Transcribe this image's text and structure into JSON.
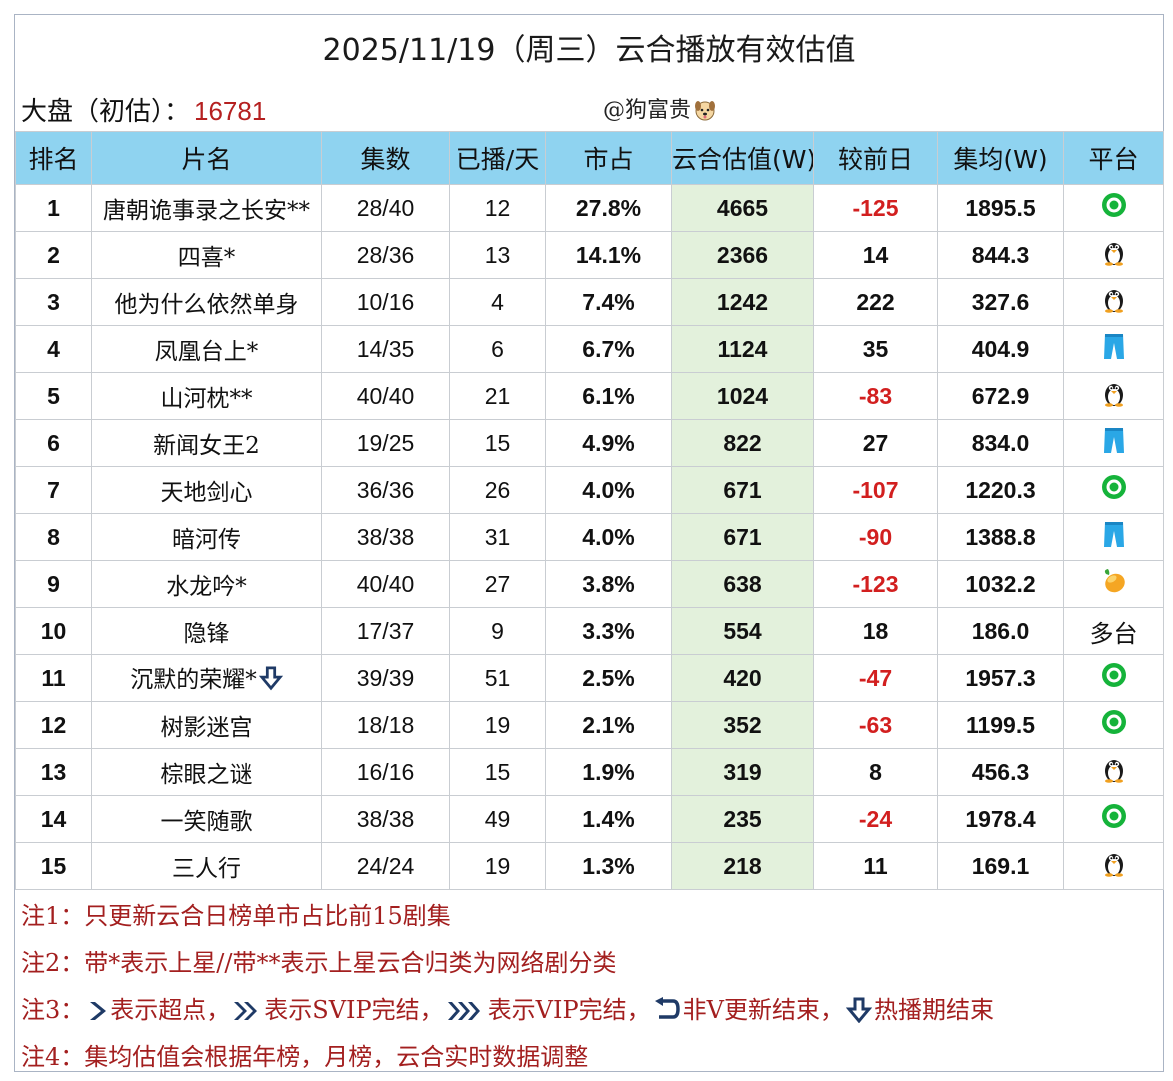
{
  "title": "2025/11/19（周三）云合播放有效估值",
  "dapan": {
    "label": "大盘（初估）：",
    "value": "16781"
  },
  "author": "@狗富贵",
  "headers": [
    "排名",
    "片名",
    "集数",
    "已播/天",
    "市占",
    "云合估值(W)",
    "较前日",
    "集均(W)",
    "平台"
  ],
  "rows": [
    {
      "rank": "1",
      "name": "唐朝诡事录之长安**",
      "eps": "28/40",
      "days": "12",
      "share": "27.8%",
      "value": "4665",
      "diff": "-125",
      "avg": "1895.5",
      "platform": "iqiyi-icon"
    },
    {
      "rank": "2",
      "name": "四喜*",
      "eps": "28/36",
      "days": "13",
      "share": "14.1%",
      "value": "2366",
      "diff": "14",
      "avg": "844.3",
      "platform": "tencent-penguin-icon"
    },
    {
      "rank": "3",
      "name": "他为什么依然单身",
      "eps": "10/16",
      "days": "4",
      "share": "7.4%",
      "value": "1242",
      "diff": "222",
      "avg": "327.6",
      "platform": "tencent-penguin-icon"
    },
    {
      "rank": "4",
      "name": "凤凰台上*",
      "eps": "14/35",
      "days": "6",
      "share": "6.7%",
      "value": "1124",
      "diff": "35",
      "avg": "404.9",
      "platform": "youku-pants-icon"
    },
    {
      "rank": "5",
      "name": "山河枕**",
      "eps": "40/40",
      "days": "21",
      "share": "6.1%",
      "value": "1024",
      "diff": "-83",
      "avg": "672.9",
      "platform": "tencent-penguin-icon"
    },
    {
      "rank": "6",
      "name": "新闻女王2",
      "eps": "19/25",
      "days": "15",
      "share": "4.9%",
      "value": "822",
      "diff": "27",
      "avg": "834.0",
      "platform": "youku-pants-icon"
    },
    {
      "rank": "7",
      "name": "天地剑心",
      "eps": "36/36",
      "days": "26",
      "share": "4.0%",
      "value": "671",
      "diff": "-107",
      "avg": "1220.3",
      "platform": "iqiyi-icon"
    },
    {
      "rank": "8",
      "name": "暗河传",
      "eps": "38/38",
      "days": "31",
      "share": "4.0%",
      "value": "671",
      "diff": "-90",
      "avg": "1388.8",
      "platform": "youku-pants-icon"
    },
    {
      "rank": "9",
      "name": "水龙吟*",
      "eps": "40/40",
      "days": "27",
      "share": "3.8%",
      "value": "638",
      "diff": "-123",
      "avg": "1032.2",
      "platform": "mango-icon"
    },
    {
      "rank": "10",
      "name": "隐锋",
      "eps": "17/37",
      "days": "9",
      "share": "3.3%",
      "value": "554",
      "diff": "18",
      "avg": "186.0",
      "platform": "多台"
    },
    {
      "rank": "11",
      "name": "沉默的荣耀*",
      "eps": "39/39",
      "days": "51",
      "share": "2.5%",
      "value": "420",
      "diff": "-47",
      "avg": "1957.3",
      "platform": "iqiyi-icon",
      "badge": "hot-end-icon"
    },
    {
      "rank": "12",
      "name": "树影迷宫",
      "eps": "18/18",
      "days": "19",
      "share": "2.1%",
      "value": "352",
      "diff": "-63",
      "avg": "1199.5",
      "platform": "iqiyi-icon"
    },
    {
      "rank": "13",
      "name": "棕眼之谜",
      "eps": "16/16",
      "days": "15",
      "share": "1.9%",
      "value": "319",
      "diff": "8",
      "avg": "456.3",
      "platform": "tencent-penguin-icon"
    },
    {
      "rank": "14",
      "name": "一笑随歌",
      "eps": "38/38",
      "days": "49",
      "share": "1.4%",
      "value": "235",
      "diff": "-24",
      "avg": "1978.4",
      "platform": "iqiyi-icon"
    },
    {
      "rank": "15",
      "name": "三人行",
      "eps": "24/24",
      "days": "19",
      "share": "1.3%",
      "value": "218",
      "diff": "11",
      "avg": "169.1",
      "platform": "tencent-penguin-icon"
    }
  ],
  "notes": {
    "n1": "注1：只更新云合日榜单市占比前15剧集",
    "n2": "注2：带*表示上星//带**表示上星云合归类为网络剧分类",
    "n3": {
      "prefix": "注3：",
      "p1": "表示超点，",
      "p2": "表示SVIP完结，",
      "p3": "表示VIP完结，",
      "p4": "非V更新结束，",
      "p5": "热播期结束"
    },
    "n4": "注4：集均估值会根据年榜，月榜，云合实时数据调整"
  },
  "colors": {
    "header_bg": "#8fd3f0",
    "value_bg": "#e3f1dc",
    "negative": "#d21f1f",
    "dapan_value": "#b52020",
    "note_text": "#a31f1f",
    "icon_navy": "#1f3a66"
  }
}
